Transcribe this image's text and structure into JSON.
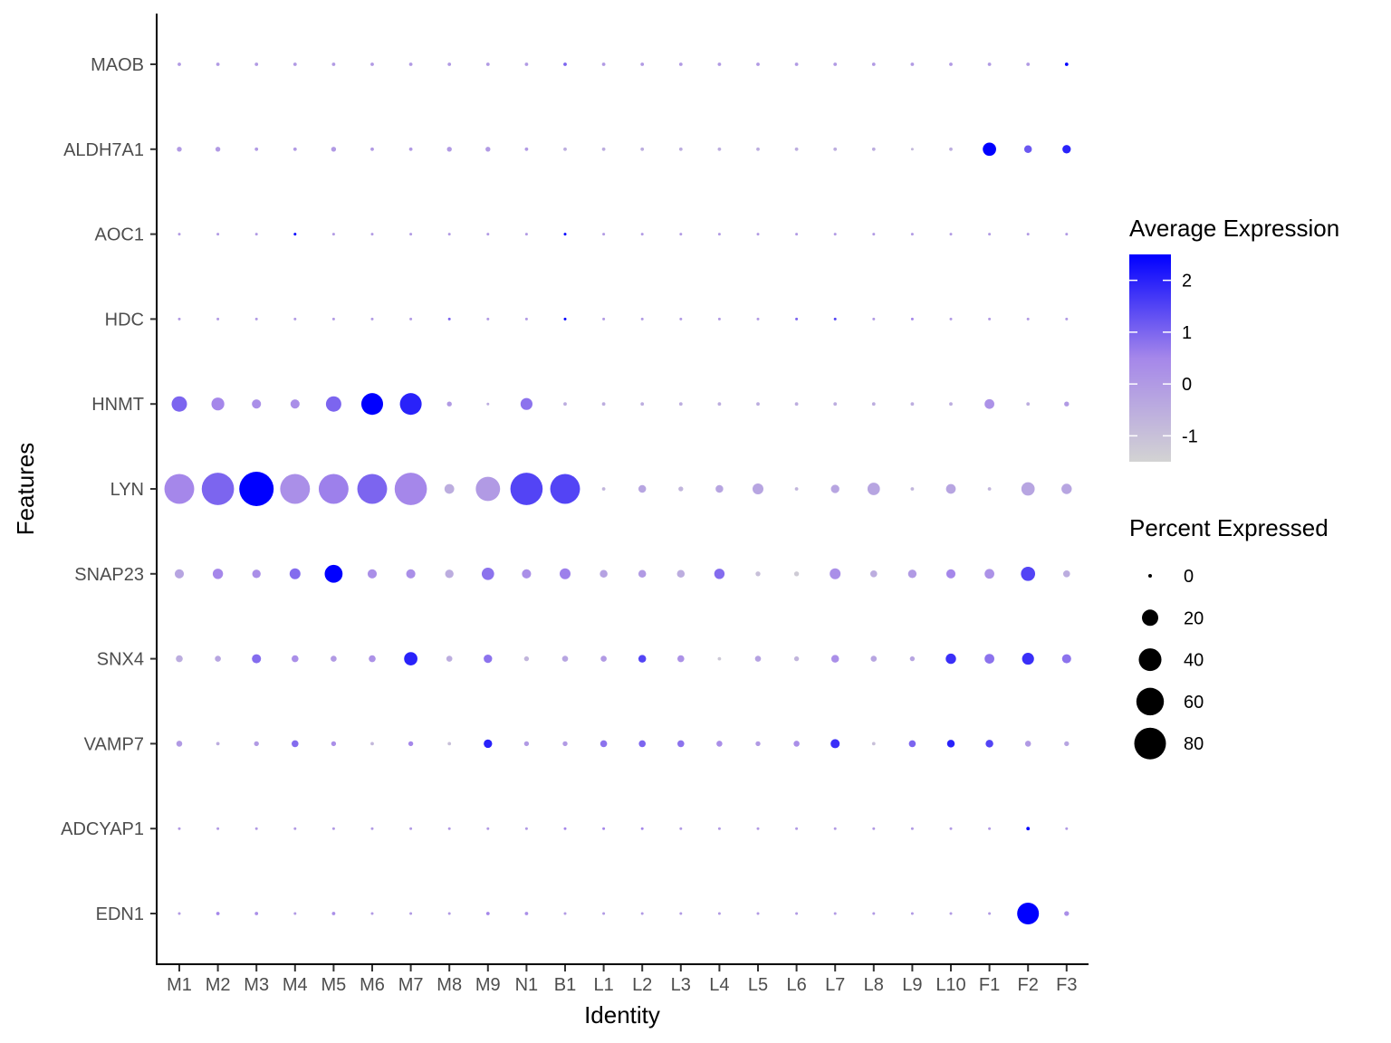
{
  "chart_data": {
    "type": "scatter",
    "subtype": "dot-plot",
    "xlabel": "Identity",
    "ylabel": "Features",
    "identities": [
      "M1",
      "M2",
      "M3",
      "M4",
      "M5",
      "M6",
      "M7",
      "M8",
      "M9",
      "N1",
      "B1",
      "L1",
      "L2",
      "L3",
      "L4",
      "L5",
      "L6",
      "L7",
      "L8",
      "L9",
      "L10",
      "F1",
      "F2",
      "F3"
    ],
    "features": [
      "MAOB",
      "ALDH7A1",
      "AOC1",
      "HDC",
      "HNMT",
      "LYN",
      "SNAP23",
      "SNX4",
      "VAMP7",
      "ADCYAP1",
      "EDN1"
    ],
    "percent_expressed": [
      [
        1,
        1,
        1,
        1,
        1,
        1,
        1,
        1,
        1,
        1,
        1,
        1,
        1,
        1,
        1,
        1,
        1,
        1,
        1,
        1,
        1,
        1,
        1,
        1
      ],
      [
        2,
        2,
        1,
        1,
        2,
        1,
        1,
        2,
        2,
        1,
        1,
        1,
        1,
        1,
        1,
        1,
        1,
        1,
        1,
        0,
        1,
        15,
        5,
        6
      ],
      [
        0,
        0,
        0,
        0,
        0,
        0,
        0,
        0,
        0,
        0,
        0,
        0,
        0,
        0,
        0,
        0,
        0,
        0,
        0,
        0,
        0,
        0,
        0,
        0
      ],
      [
        0,
        0,
        0,
        0,
        0,
        0,
        0,
        0,
        0,
        0,
        0,
        0,
        0,
        0,
        0,
        0,
        0,
        0,
        0,
        0,
        0,
        0,
        0,
        0
      ],
      [
        20,
        14,
        7,
        7,
        20,
        40,
        40,
        2,
        0,
        12,
        1,
        1,
        1,
        1,
        1,
        1,
        1,
        1,
        1,
        1,
        1,
        8,
        1,
        2
      ],
      [
        75,
        88,
        100,
        75,
        75,
        75,
        88,
        8,
        50,
        88,
        75,
        1,
        5,
        2,
        5,
        10,
        1,
        6,
        13,
        1,
        8,
        1,
        15,
        9
      ],
      [
        7,
        9,
        6,
        10,
        27,
        7,
        7,
        6,
        13,
        7,
        10,
        5,
        5,
        5,
        9,
        2,
        2,
        10,
        4,
        6,
        7,
        8,
        17,
        4
      ],
      [
        4,
        3,
        7,
        4,
        3,
        4,
        15,
        3,
        6,
        2,
        3,
        3,
        5,
        4,
        1,
        3,
        2,
        5,
        3,
        2,
        9,
        8,
        12,
        7
      ],
      [
        3,
        1,
        2,
        4,
        2,
        1,
        2,
        1,
        6,
        2,
        2,
        4,
        4,
        4,
        3,
        2,
        3,
        7,
        1,
        4,
        5,
        5,
        3,
        2
      ],
      [
        0,
        0,
        0,
        0,
        0,
        0,
        0,
        0,
        0,
        0,
        0,
        0,
        0,
        0,
        0,
        0,
        0,
        0,
        0,
        0,
        0,
        0,
        1,
        0
      ],
      [
        0,
        1,
        1,
        0,
        1,
        0,
        0,
        0,
        1,
        1,
        0,
        0,
        0,
        0,
        0,
        0,
        0,
        0,
        0,
        0,
        0,
        0,
        40,
        2
      ]
    ],
    "average_expression": [
      [
        0,
        0,
        0,
        0,
        0,
        0,
        0,
        0,
        0,
        0,
        1,
        0,
        0,
        0,
        0,
        0,
        0,
        0,
        0,
        0,
        0,
        0,
        0,
        2.5
      ],
      [
        0,
        0,
        0,
        0,
        0,
        0,
        0,
        0,
        0,
        0,
        -0.5,
        -0.5,
        -0.5,
        -0.5,
        -0.5,
        -0.5,
        -0.5,
        -0.5,
        -0.5,
        -0.8,
        -0.5,
        2.5,
        1.2,
        2
      ],
      [
        0,
        0,
        0,
        2.5,
        0,
        0,
        0,
        0,
        0,
        0,
        2.5,
        0,
        0,
        0,
        0,
        0,
        0,
        0,
        0,
        0,
        0,
        0,
        0,
        0
      ],
      [
        0,
        0,
        0,
        0,
        0,
        0,
        0,
        1,
        0,
        0,
        2.5,
        0,
        0,
        0,
        0,
        0,
        1,
        1.5,
        0,
        0.5,
        0,
        0,
        0,
        0
      ],
      [
        1,
        0.5,
        0.3,
        0.3,
        1,
        2.5,
        2,
        0,
        -0.5,
        0.8,
        -0.5,
        -0.5,
        -0.5,
        -0.5,
        -0.5,
        -0.5,
        -0.5,
        -0.5,
        -0.5,
        -0.5,
        -0.5,
        0.2,
        -0.5,
        0
      ],
      [
        0.5,
        1,
        2.5,
        0.3,
        0.6,
        1,
        0.5,
        -0.5,
        0,
        1.5,
        1.5,
        -0.7,
        -0.3,
        -0.7,
        -0.3,
        -0.3,
        -0.7,
        -0.3,
        -0.3,
        -0.7,
        -0.3,
        -0.7,
        -0.3,
        -0.3
      ],
      [
        -0.3,
        0.5,
        0.3,
        0.9,
        2.5,
        0.3,
        0.3,
        -0.5,
        0.8,
        0.3,
        0.6,
        -0.2,
        0,
        -0.5,
        0.9,
        -1,
        -1.3,
        0.3,
        -0.5,
        0,
        0.5,
        0.2,
        1.5,
        -0.5
      ],
      [
        -0.5,
        -0.3,
        0.9,
        0.3,
        0,
        0.2,
        2,
        -0.5,
        0.8,
        -0.7,
        -0.3,
        0,
        1.5,
        0.2,
        -1.2,
        -0.2,
        -0.7,
        0.3,
        -0.3,
        -0.3,
        1.8,
        0.8,
        1.8,
        0.8
      ],
      [
        0,
        -0.5,
        0,
        0.9,
        0.3,
        -0.8,
        0.5,
        -1,
        2,
        0,
        0,
        0.8,
        1,
        0.8,
        0.3,
        0,
        0.3,
        1.8,
        -1,
        1,
        2,
        1.5,
        0,
        -0.3
      ],
      [
        0,
        0,
        0,
        0,
        0,
        0,
        0,
        0,
        0,
        0,
        0.5,
        0.5,
        0.5,
        0,
        0,
        0,
        0,
        0,
        0,
        0,
        0,
        0,
        2.5,
        0
      ],
      [
        0,
        0.5,
        0.3,
        0,
        0.3,
        0,
        0,
        0,
        0.5,
        0.3,
        0,
        0,
        0,
        0,
        0,
        0,
        0,
        0,
        0,
        0,
        0,
        0,
        2.5,
        0.3
      ]
    ],
    "color_scale": {
      "low": "#d3d3d3",
      "high": "#0000ff",
      "domain": [
        -1.5,
        2.5
      ]
    },
    "size_scale": {
      "domain": [
        0,
        100
      ]
    },
    "legend_color": {
      "title": "Average Expression",
      "ticks": [
        2,
        1,
        0,
        -1
      ]
    },
    "legend_size": {
      "title": "Percent Expressed",
      "values": [
        0,
        20,
        40,
        60,
        80
      ]
    },
    "legend_placement": "right",
    "grid": false
  }
}
